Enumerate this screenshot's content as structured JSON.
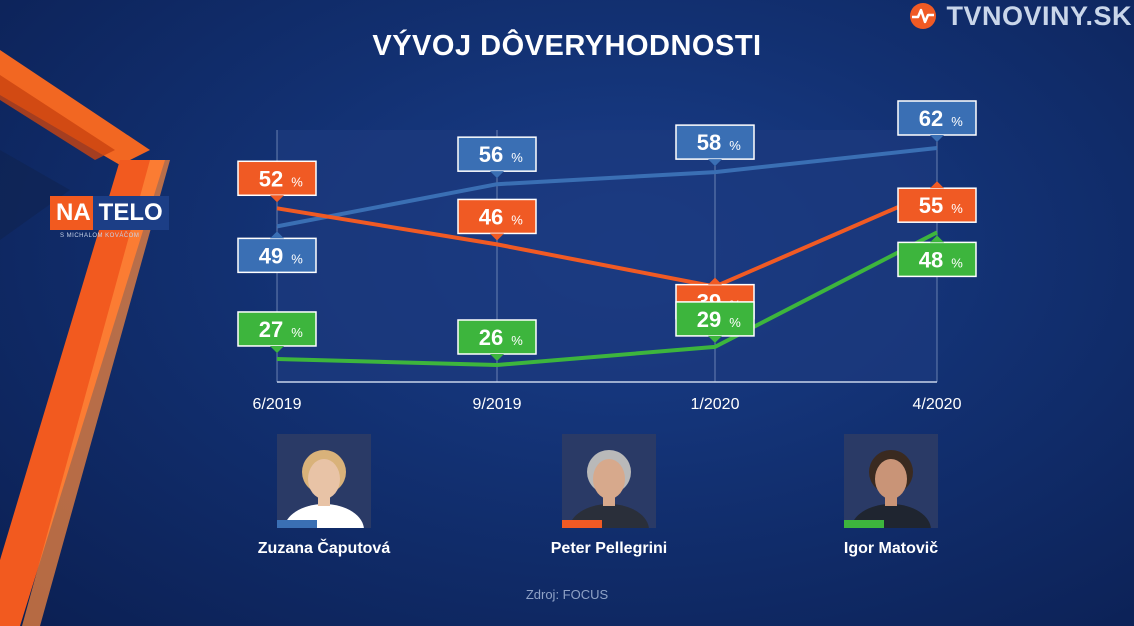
{
  "title": "VÝVOJ DÔVERYHODNOSTI",
  "brand": {
    "text": "TVNOVINY.SK",
    "icon": "tvnoviny-logo-icon"
  },
  "show_logo": {
    "part1": "NA",
    "part2": "TELO",
    "subtitle": "S MICHALOM KOVÁČOM"
  },
  "source": "Zdroj: FOCUS",
  "colors": {
    "blue": "#3a6fb4",
    "orange": "#f05a24",
    "green": "#3db53d",
    "plot_bg": "#1c3a7e"
  },
  "chart_data": {
    "type": "line",
    "x": [
      "6/2019",
      "9/2019",
      "1/2020",
      "4/2020"
    ],
    "ylim": [
      0,
      100
    ],
    "unit": "%",
    "grid": "vertical",
    "series": [
      {
        "name": "Zuzana Čaputová",
        "color": "#3a6fb4",
        "values": [
          49,
          56,
          58,
          62
        ],
        "labels": [
          "49",
          "56",
          "58",
          "62"
        ]
      },
      {
        "name": "Peter Pellegrini",
        "color": "#f05a24",
        "values": [
          52,
          46,
          39,
          55
        ],
        "labels": [
          "52",
          "46",
          "39",
          "55"
        ]
      },
      {
        "name": "Igor Matovič",
        "color": "#3db53d",
        "values": [
          27,
          26,
          29,
          48
        ],
        "labels": [
          "27",
          "26",
          "29",
          "48"
        ]
      }
    ]
  },
  "people": [
    {
      "name": "Zuzana Čaputová",
      "color": "#3a6fb4",
      "hair": "#d9b27a",
      "skin": "#e8c3a6",
      "clothes": "#ffffff"
    },
    {
      "name": "Peter Pellegrini",
      "color": "#f05a24",
      "hair": "#b9b9b9",
      "skin": "#d7a98c",
      "clothes": "#2a2f3a"
    },
    {
      "name": "Igor Matovič",
      "color": "#3db53d",
      "hair": "#3a2a20",
      "skin": "#c99477",
      "clothes": "#1f2530"
    }
  ]
}
